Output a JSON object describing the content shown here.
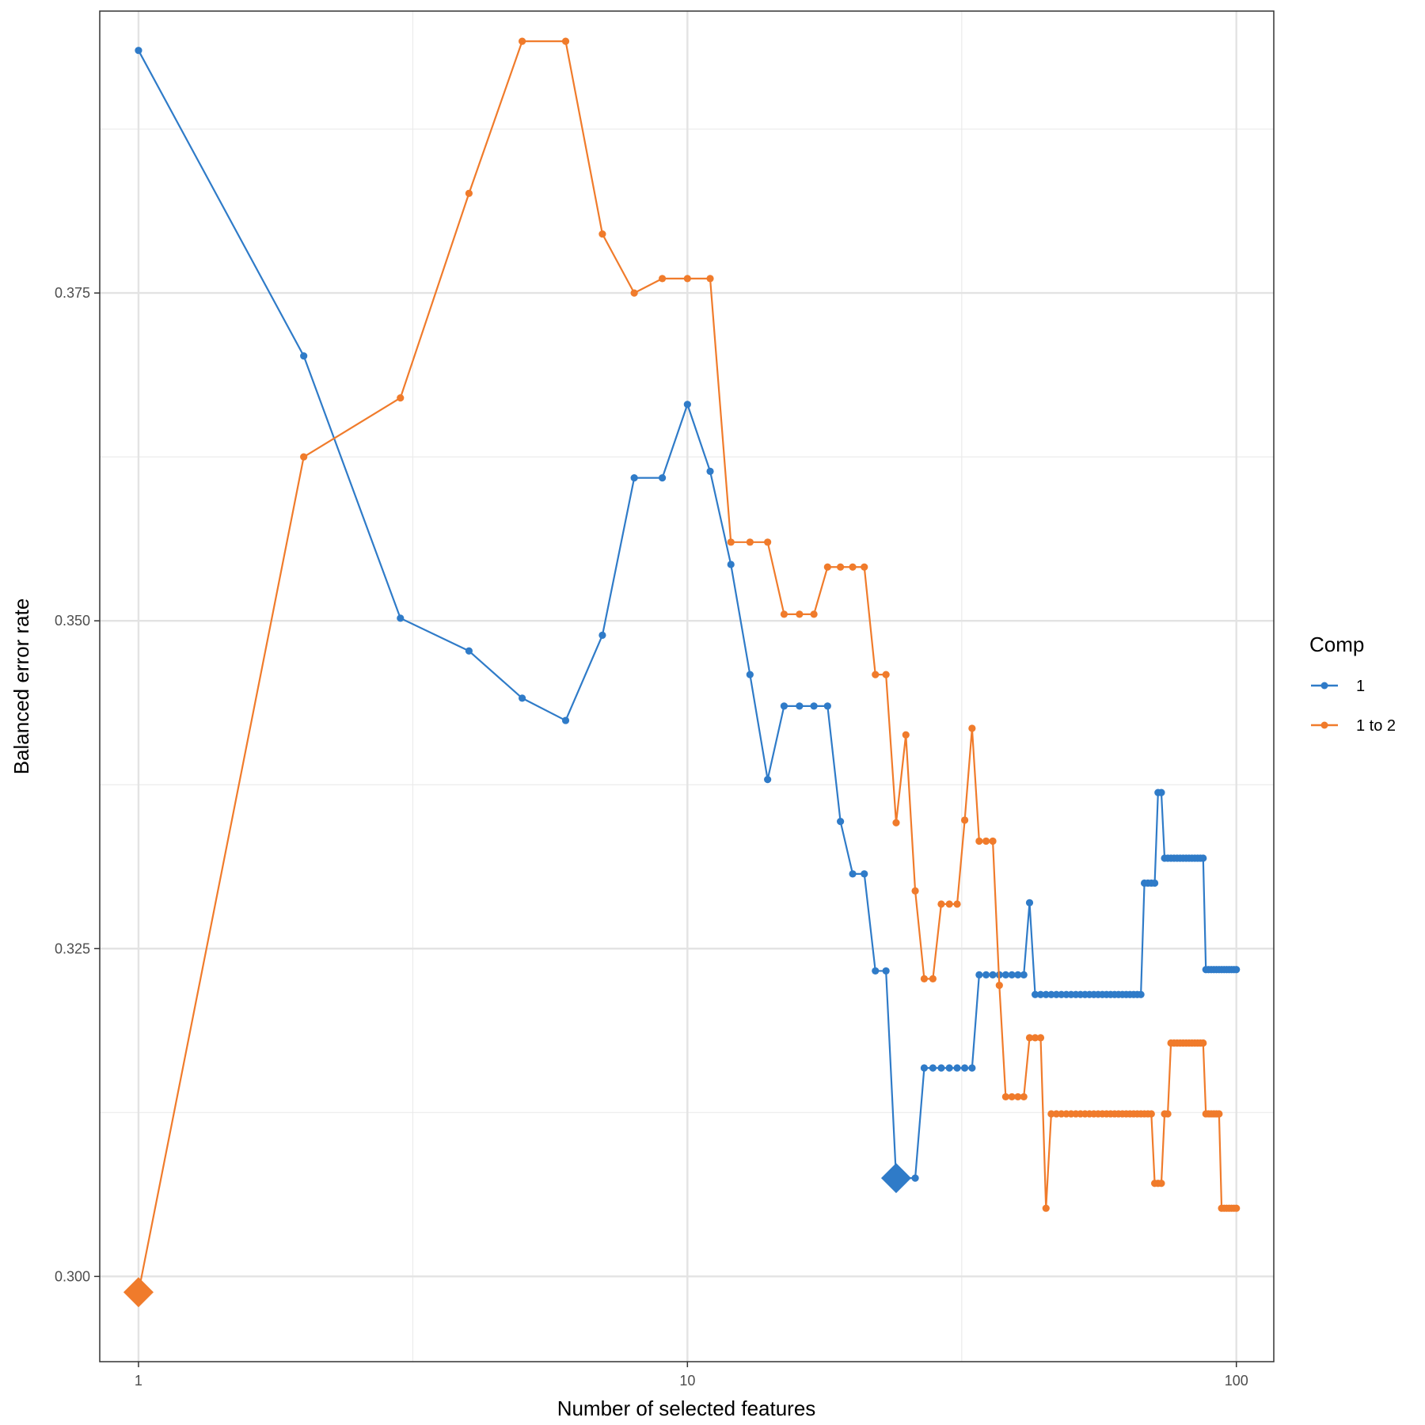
{
  "chart_data": {
    "type": "line",
    "xlabel": "Number of selected features",
    "ylabel": "Balanced error rate",
    "x_scale": "log10",
    "xlim": [
      0.85,
      117
    ],
    "ylim": [
      0.2935,
      0.3965
    ],
    "x_ticks": [
      {
        "value": 1,
        "label": "1"
      },
      {
        "value": 10,
        "label": "10"
      },
      {
        "value": 100,
        "label": "100"
      }
    ],
    "x_minor_ticks": [
      3.16,
      31.6
    ],
    "y_ticks": [
      {
        "value": 0.3,
        "label": "0.300"
      },
      {
        "value": 0.325,
        "label": "0.325"
      },
      {
        "value": 0.35,
        "label": "0.350"
      },
      {
        "value": 0.375,
        "label": "0.375"
      }
    ],
    "y_minor_ticks": [
      0.3125,
      0.3375,
      0.3625,
      0.3875
    ],
    "grid": true,
    "legend": {
      "title": "Comp",
      "position": "right"
    },
    "colors": {
      "1": "#2F7BC8",
      "1 to 2": "#F07B2B"
    },
    "series": [
      {
        "name": "1",
        "color": "#2F7BC8",
        "optimum": {
          "x": 24,
          "y": 0.3075
        },
        "points": [
          [
            1,
            0.3935
          ],
          [
            2,
            0.3702
          ],
          [
            3,
            0.3502
          ],
          [
            4,
            0.3477
          ],
          [
            5,
            0.3441
          ],
          [
            6,
            0.3424
          ],
          [
            7,
            0.3489
          ],
          [
            8,
            0.3609
          ],
          [
            9,
            0.3609
          ],
          [
            10,
            0.3665
          ],
          [
            11,
            0.3614
          ],
          [
            12,
            0.3543
          ],
          [
            13,
            0.3459
          ],
          [
            14,
            0.3379
          ],
          [
            15,
            0.3435
          ],
          [
            16,
            0.3435
          ],
          [
            17,
            0.3435
          ],
          [
            18,
            0.3435
          ],
          [
            19,
            0.3347
          ],
          [
            20,
            0.3307
          ],
          [
            21,
            0.3307
          ],
          [
            22,
            0.3233
          ],
          [
            23,
            0.3233
          ],
          [
            24,
            0.3075
          ],
          [
            25,
            0.3075
          ],
          [
            26,
            0.3075
          ],
          [
            27,
            0.3159
          ],
          [
            28,
            0.3159
          ],
          [
            29,
            0.3159
          ],
          [
            30,
            0.3159
          ],
          [
            31,
            0.3159
          ],
          [
            32,
            0.3159
          ],
          [
            33,
            0.3159
          ],
          [
            34,
            0.323
          ],
          [
            35,
            0.323
          ],
          [
            36,
            0.323
          ],
          [
            37,
            0.323
          ],
          [
            38,
            0.323
          ],
          [
            39,
            0.323
          ],
          [
            40,
            0.323
          ],
          [
            41,
            0.323
          ],
          [
            42,
            0.3285
          ],
          [
            43,
            0.3215
          ],
          [
            44,
            0.3215
          ],
          [
            45,
            0.3215
          ],
          [
            46,
            0.3215
          ],
          [
            47,
            0.3215
          ],
          [
            48,
            0.3215
          ],
          [
            49,
            0.3215
          ],
          [
            50,
            0.3215
          ],
          [
            51,
            0.3215
          ],
          [
            52,
            0.3215
          ],
          [
            53,
            0.3215
          ],
          [
            54,
            0.3215
          ],
          [
            55,
            0.3215
          ],
          [
            56,
            0.3215
          ],
          [
            57,
            0.3215
          ],
          [
            58,
            0.3215
          ],
          [
            59,
            0.3215
          ],
          [
            60,
            0.3215
          ],
          [
            61,
            0.3215
          ],
          [
            62,
            0.3215
          ],
          [
            63,
            0.3215
          ],
          [
            64,
            0.3215
          ],
          [
            65,
            0.3215
          ],
          [
            66,
            0.3215
          ],
          [
            67,
            0.3215
          ],
          [
            68,
            0.33
          ],
          [
            69,
            0.33
          ],
          [
            70,
            0.33
          ],
          [
            71,
            0.33
          ],
          [
            72,
            0.3369
          ],
          [
            73,
            0.3369
          ],
          [
            74,
            0.3319
          ],
          [
            75,
            0.3319
          ],
          [
            76,
            0.3319
          ],
          [
            77,
            0.3319
          ],
          [
            78,
            0.3319
          ],
          [
            79,
            0.3319
          ],
          [
            80,
            0.3319
          ],
          [
            81,
            0.3319
          ],
          [
            82,
            0.3319
          ],
          [
            83,
            0.3319
          ],
          [
            84,
            0.3319
          ],
          [
            85,
            0.3319
          ],
          [
            86,
            0.3319
          ],
          [
            87,
            0.3319
          ],
          [
            88,
            0.3234
          ],
          [
            89,
            0.3234
          ],
          [
            90,
            0.3234
          ],
          [
            91,
            0.3234
          ],
          [
            92,
            0.3234
          ],
          [
            93,
            0.3234
          ],
          [
            94,
            0.3234
          ],
          [
            95,
            0.3234
          ],
          [
            96,
            0.3234
          ],
          [
            97,
            0.3234
          ],
          [
            98,
            0.3234
          ],
          [
            99,
            0.3234
          ],
          [
            100,
            0.3234
          ]
        ]
      },
      {
        "name": "1 to 2",
        "color": "#F07B2B",
        "optimum": {
          "x": 1,
          "y": 0.2988
        },
        "points": [
          [
            1,
            0.2988
          ],
          [
            2,
            0.3625
          ],
          [
            3,
            0.367
          ],
          [
            4,
            0.3826
          ],
          [
            5,
            0.3942
          ],
          [
            6,
            0.3942
          ],
          [
            7,
            0.3795
          ],
          [
            8,
            0.375
          ],
          [
            9,
            0.3761
          ],
          [
            10,
            0.3761
          ],
          [
            11,
            0.3761
          ],
          [
            12,
            0.356
          ],
          [
            13,
            0.356
          ],
          [
            14,
            0.356
          ],
          [
            15,
            0.3505
          ],
          [
            16,
            0.3505
          ],
          [
            17,
            0.3505
          ],
          [
            18,
            0.3541
          ],
          [
            19,
            0.3541
          ],
          [
            20,
            0.3541
          ],
          [
            21,
            0.3541
          ],
          [
            22,
            0.3459
          ],
          [
            23,
            0.3459
          ],
          [
            24,
            0.3346
          ],
          [
            25,
            0.3413
          ],
          [
            26,
            0.3294
          ],
          [
            27,
            0.3227
          ],
          [
            28,
            0.3227
          ],
          [
            29,
            0.3284
          ],
          [
            30,
            0.3284
          ],
          [
            31,
            0.3284
          ],
          [
            32,
            0.3348
          ],
          [
            33,
            0.3418
          ],
          [
            34,
            0.3332
          ],
          [
            35,
            0.3332
          ],
          [
            36,
            0.3332
          ],
          [
            37,
            0.3222
          ],
          [
            38,
            0.3137
          ],
          [
            39,
            0.3137
          ],
          [
            40,
            0.3137
          ],
          [
            41,
            0.3137
          ],
          [
            42,
            0.3182
          ],
          [
            43,
            0.3182
          ],
          [
            44,
            0.3182
          ],
          [
            45,
            0.3052
          ],
          [
            46,
            0.3124
          ],
          [
            47,
            0.3124
          ],
          [
            48,
            0.3124
          ],
          [
            49,
            0.3124
          ],
          [
            50,
            0.3124
          ],
          [
            51,
            0.3124
          ],
          [
            52,
            0.3124
          ],
          [
            53,
            0.3124
          ],
          [
            54,
            0.3124
          ],
          [
            55,
            0.3124
          ],
          [
            56,
            0.3124
          ],
          [
            57,
            0.3124
          ],
          [
            58,
            0.3124
          ],
          [
            59,
            0.3124
          ],
          [
            60,
            0.3124
          ],
          [
            61,
            0.3124
          ],
          [
            62,
            0.3124
          ],
          [
            63,
            0.3124
          ],
          [
            64,
            0.3124
          ],
          [
            65,
            0.3124
          ],
          [
            66,
            0.3124
          ],
          [
            67,
            0.3124
          ],
          [
            68,
            0.3124
          ],
          [
            69,
            0.3124
          ],
          [
            70,
            0.3124
          ],
          [
            71,
            0.3071
          ],
          [
            72,
            0.3071
          ],
          [
            73,
            0.3071
          ],
          [
            74,
            0.3124
          ],
          [
            75,
            0.3124
          ],
          [
            76,
            0.3178
          ],
          [
            77,
            0.3178
          ],
          [
            78,
            0.3178
          ],
          [
            79,
            0.3178
          ],
          [
            80,
            0.3178
          ],
          [
            81,
            0.3178
          ],
          [
            82,
            0.3178
          ],
          [
            83,
            0.3178
          ],
          [
            84,
            0.3178
          ],
          [
            85,
            0.3178
          ],
          [
            86,
            0.3178
          ],
          [
            87,
            0.3178
          ],
          [
            88,
            0.3124
          ],
          [
            89,
            0.3124
          ],
          [
            90,
            0.3124
          ],
          [
            91,
            0.3124
          ],
          [
            92,
            0.3124
          ],
          [
            93,
            0.3124
          ],
          [
            94,
            0.3052
          ],
          [
            95,
            0.3052
          ],
          [
            96,
            0.3052
          ],
          [
            97,
            0.3052
          ],
          [
            98,
            0.3052
          ],
          [
            99,
            0.3052
          ],
          [
            100,
            0.3052
          ]
        ]
      }
    ]
  }
}
